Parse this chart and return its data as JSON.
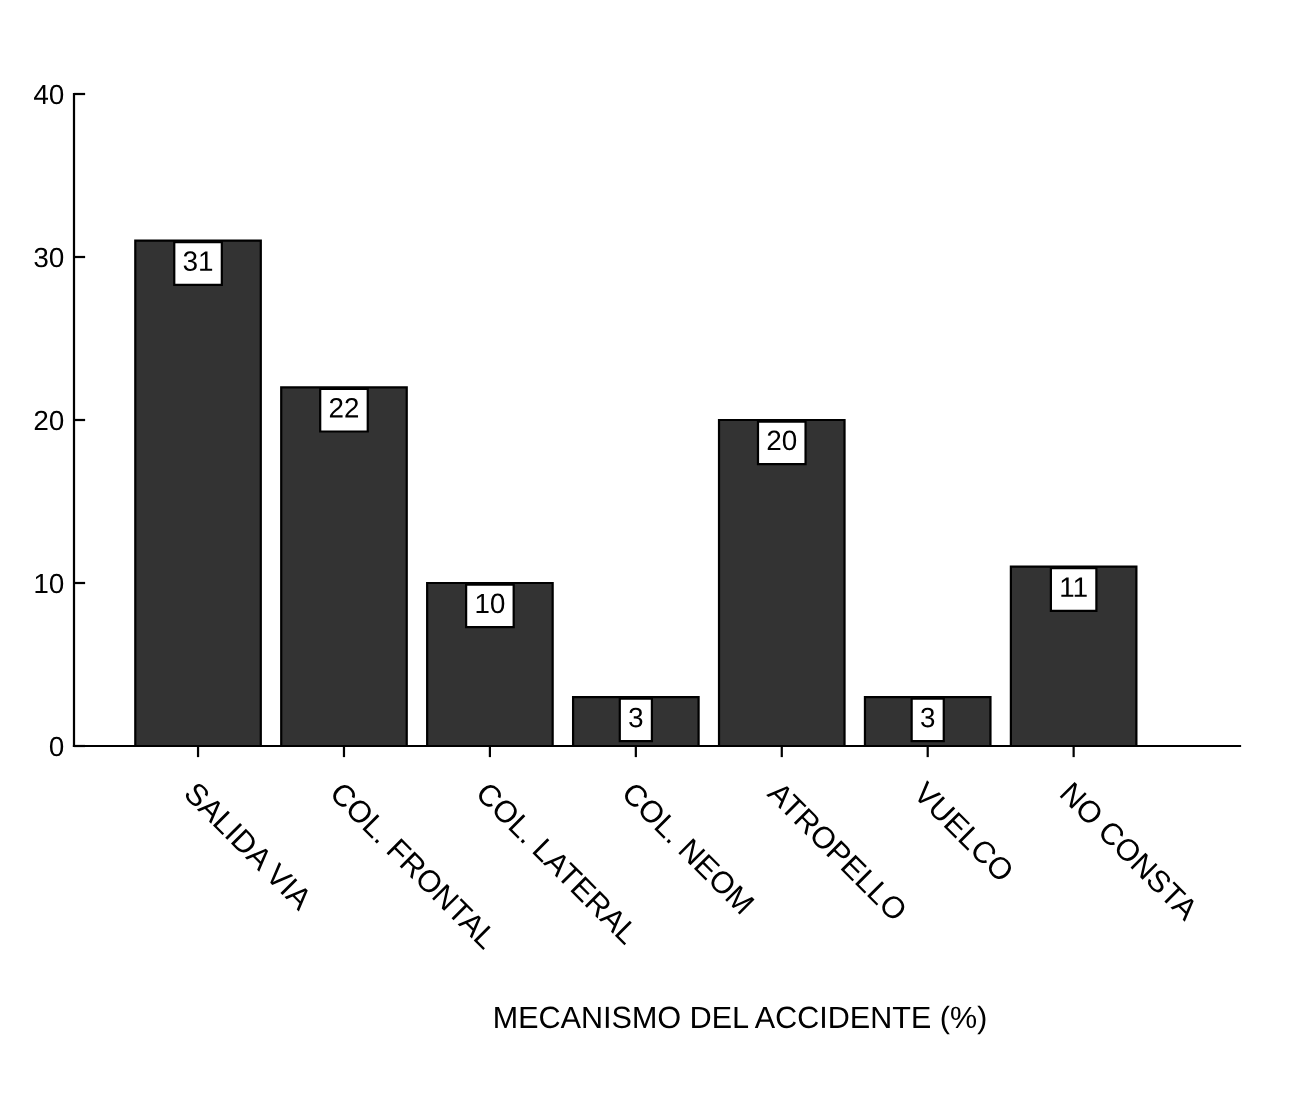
{
  "chart_data": {
    "type": "bar",
    "xlabel": "MECANISMO DEL ACCIDENTE (%)",
    "categories": [
      "SALIDA VIA",
      "COL. FRONTAL",
      "COL. LATERAL",
      "COL. NEOM",
      "ATROPELLO",
      "VUELCO",
      "NO CONSTA"
    ],
    "values": [
      31,
      22,
      10,
      3,
      20,
      3,
      11
    ],
    "color": "#333333",
    "ylim": [
      0,
      40
    ],
    "yticks": [
      0,
      10,
      20,
      30,
      40
    ],
    "grid": false,
    "data_labels": true
  }
}
